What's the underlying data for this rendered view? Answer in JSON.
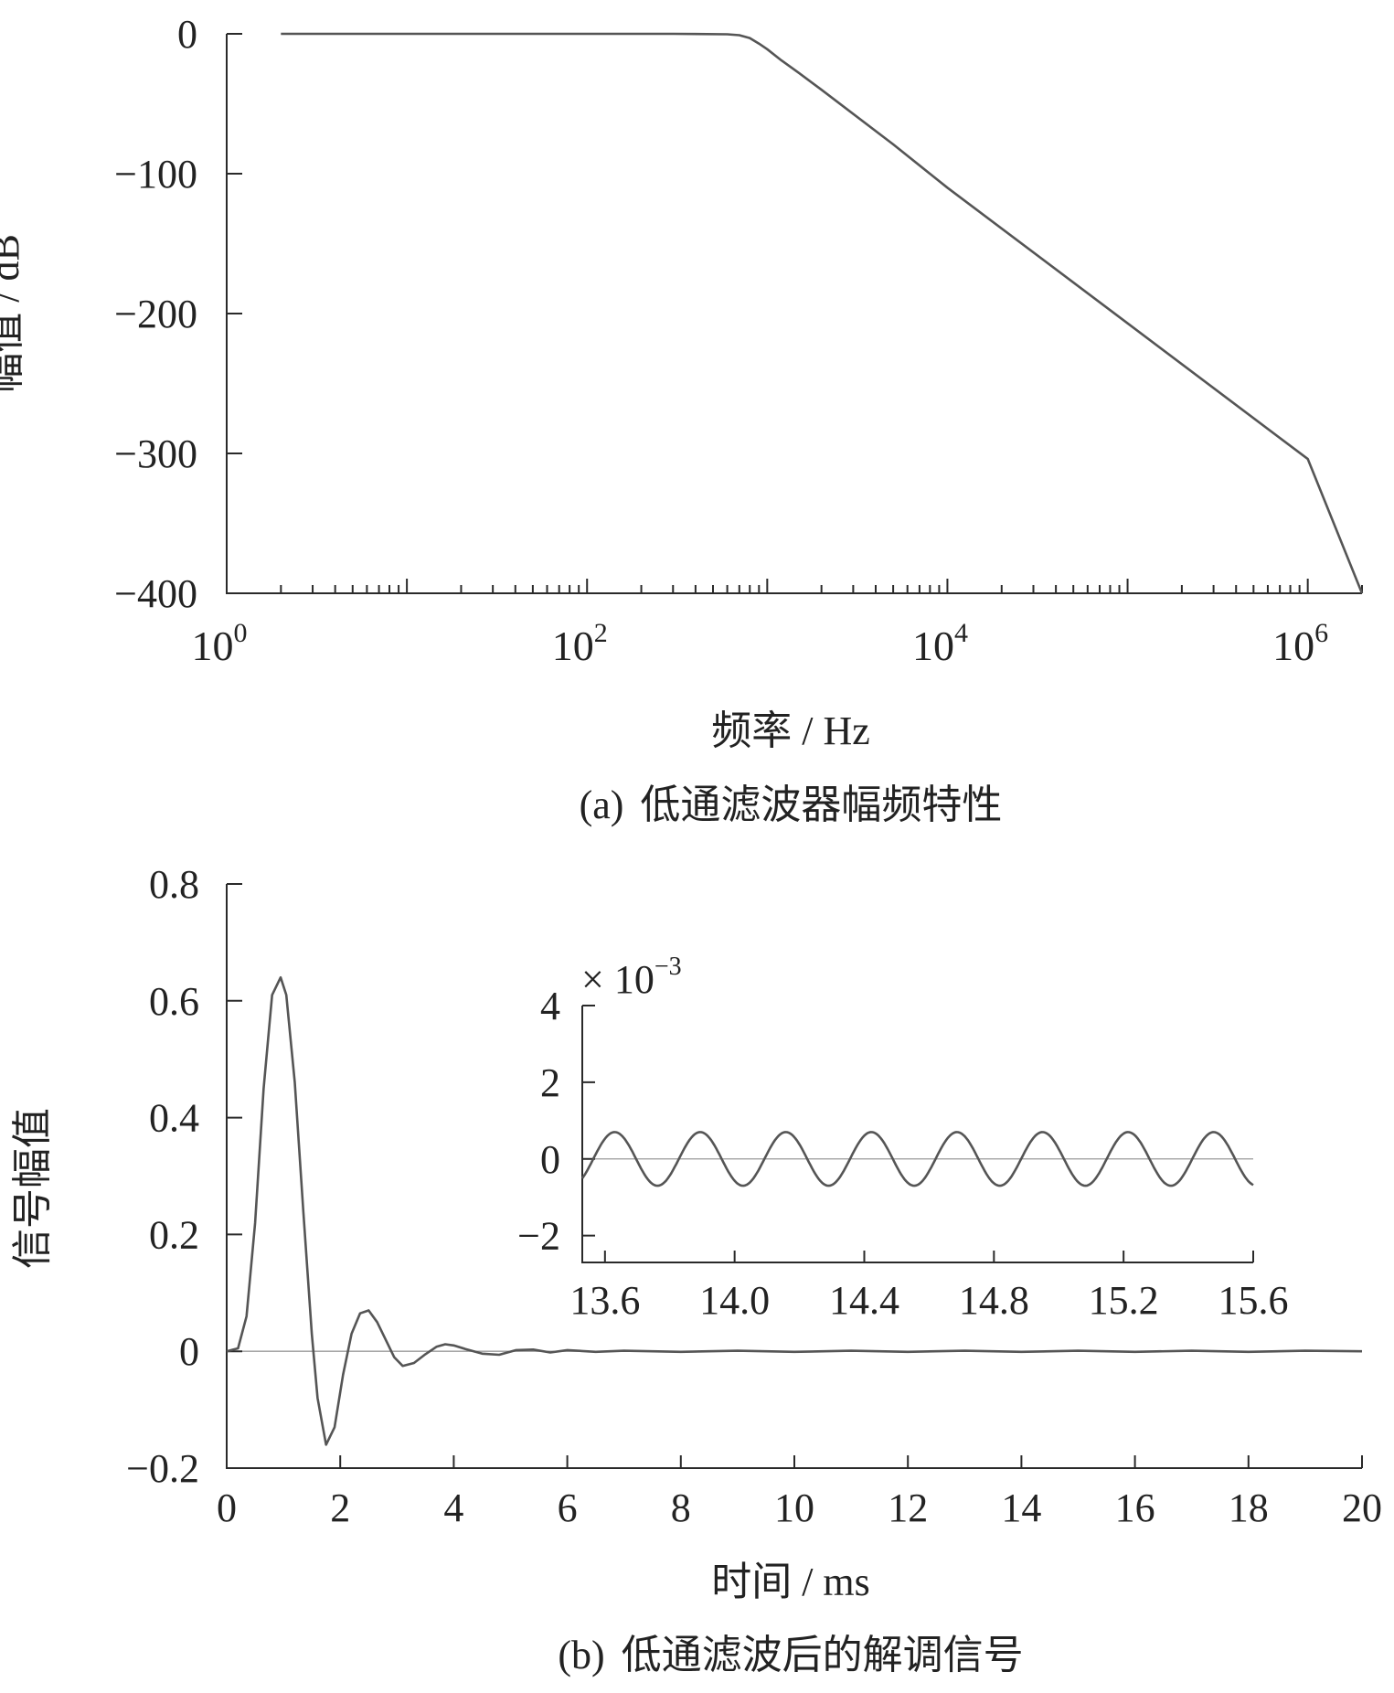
{
  "chart_data": [
    {
      "type": "line",
      "panel_label": "(a)",
      "caption": "低通滤波器幅频特性",
      "xlabel": "频率 / Hz",
      "ylabel": "幅值 / dB",
      "x_scale": "log",
      "xlim": [
        1,
        2000000
      ],
      "ylim": [
        -400,
        0
      ],
      "x_ticks": [
        {
          "value": 1,
          "base": "10",
          "exp": "0"
        },
        {
          "value": 100,
          "base": "10",
          "exp": "2"
        },
        {
          "value": 10000,
          "base": "10",
          "exp": "4"
        },
        {
          "value": 1000000,
          "base": "10",
          "exp": "6"
        }
      ],
      "y_ticks": [
        0,
        -100,
        -200,
        -300,
        -400
      ],
      "y_tick_labels": [
        "0",
        "−100",
        "−200",
        "−300",
        "−400"
      ],
      "series": [
        {
          "x": [
            2,
            10,
            100,
            300,
            600,
            700,
            800,
            900,
            1000,
            1200,
            1500,
            2000,
            5000,
            10000,
            100000,
            1000000,
            2000000
          ],
          "y": [
            0,
            0,
            0,
            0,
            -0.3,
            -1,
            -3,
            -7,
            -11,
            -19,
            -28,
            -40,
            -79,
            -110,
            -207,
            -304,
            -400
          ]
        }
      ],
      "color": "#555555"
    },
    {
      "type": "line",
      "panel_label": "(b)",
      "caption": "低通滤波后的解调信号",
      "xlabel": "时间 / ms",
      "ylabel": "信号幅值",
      "xlim": [
        0,
        20
      ],
      "ylim": [
        -0.2,
        0.8
      ],
      "x_ticks": [
        0,
        2,
        4,
        6,
        8,
        10,
        12,
        14,
        16,
        18,
        20
      ],
      "y_ticks": [
        0.8,
        0.6,
        0.4,
        0.2,
        0,
        -0.2
      ],
      "y_tick_labels": [
        "0.8",
        "0.6",
        "0.4",
        "0.2",
        "0",
        "−0.2"
      ],
      "series": [
        {
          "x": [
            0,
            0.2,
            0.35,
            0.5,
            0.65,
            0.8,
            0.95,
            1.05,
            1.2,
            1.35,
            1.5,
            1.6,
            1.75,
            1.9,
            2.05,
            2.2,
            2.35,
            2.5,
            2.65,
            2.8,
            2.95,
            3.1,
            3.3,
            3.5,
            3.7,
            3.85,
            4.0,
            4.2,
            4.5,
            4.8,
            5.1,
            5.4,
            5.7,
            6.0,
            6.5,
            7.0,
            8.0,
            9.0,
            10.0,
            11.0,
            12.0,
            13.0,
            14.0,
            15.0,
            16.0,
            17.0,
            18.0,
            19.0,
            20.0
          ],
          "y": [
            0,
            0.005,
            0.06,
            0.22,
            0.45,
            0.61,
            0.64,
            0.61,
            0.46,
            0.24,
            0.03,
            -0.08,
            -0.16,
            -0.13,
            -0.04,
            0.03,
            0.065,
            0.07,
            0.05,
            0.02,
            -0.01,
            -0.025,
            -0.02,
            -0.005,
            0.008,
            0.012,
            0.01,
            0.004,
            -0.004,
            -0.006,
            0.002,
            0.003,
            -0.002,
            0.002,
            -0.001,
            0.001,
            -0.001,
            0.001,
            -0.001,
            0.001,
            -0.001,
            0.001,
            -0.001,
            0.001,
            -0.001,
            0.001,
            -0.001,
            0.001,
            0
          ]
        }
      ],
      "zero_line": true,
      "color": "#555555",
      "inset": {
        "xlim": [
          13.53,
          15.6
        ],
        "ylim": [
          -2.7,
          4
        ],
        "x_ticks": [
          13.6,
          14.0,
          14.4,
          14.8,
          15.2,
          15.6
        ],
        "x_tick_labels": [
          "13.6",
          "14.0",
          "14.4",
          "14.8",
          "15.2",
          "15.6"
        ],
        "y_ticks": [
          4,
          2,
          0,
          -2
        ],
        "y_tick_labels": [
          "4",
          "2",
          "0",
          "−2"
        ],
        "multiplier_text": "× 10",
        "multiplier_exp": "−3",
        "wave": {
          "amplitude": 0.7,
          "period": 0.264,
          "peak_at": 13.63
        },
        "zero_line": true
      }
    }
  ]
}
